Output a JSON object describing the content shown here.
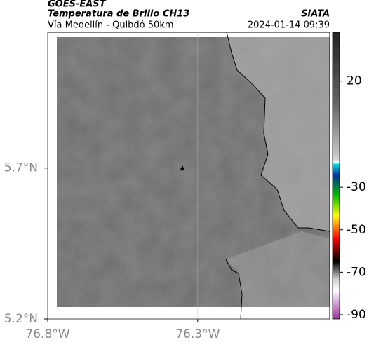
{
  "header": {
    "title": "GOES-EAST",
    "subtitle": "Temperatura de Brillo CH13",
    "route": "Vía Medellín - Quibdó 50km",
    "source": "SIATA",
    "timestamp": "2024-01-14 09:39"
  },
  "map": {
    "xlim": [
      -76.8,
      -75.86
    ],
    "ylim": [
      5.2,
      6.15
    ],
    "xticks": [
      {
        "value": -76.8,
        "label": "76.8°W"
      },
      {
        "value": -76.3,
        "label": "76.3°W"
      }
    ],
    "yticks": [
      {
        "value": 5.7,
        "label": "5.7°N"
      },
      {
        "value": 5.2,
        "label": "5.2°N"
      }
    ]
  },
  "colorbar": {
    "clim": [
      43,
      -92
    ],
    "ticks": [
      20,
      -30,
      -50,
      -70,
      -90
    ]
  }
}
